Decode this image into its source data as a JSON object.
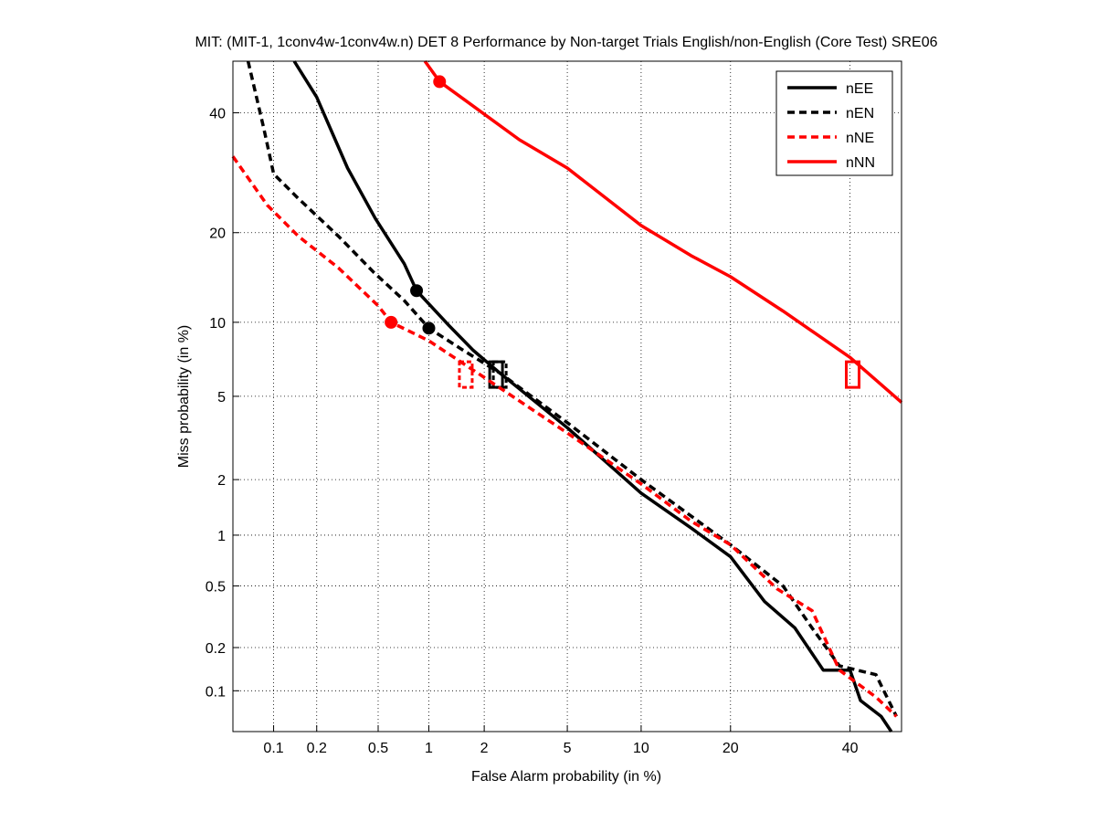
{
  "chart_data": {
    "type": "line",
    "title": "MIT: (MIT-1, 1conv4w-1conv4w.n) DET 8 Performance by Non-target Trials English/non-English (Core Test) SRE06",
    "xlabel": "False Alarm probability (in %)",
    "ylabel": "Miss probability (in %)",
    "xscale": "probit",
    "yscale": "probit",
    "xlim": [
      0.05,
      50
    ],
    "ylim": [
      0.05,
      50
    ],
    "xticks": [
      0.1,
      0.2,
      0.5,
      1,
      2,
      5,
      10,
      20,
      40
    ],
    "xtick_labels": [
      "0.1",
      "0.2",
      "0.5",
      "1",
      "2",
      "5",
      "10",
      "20",
      "40"
    ],
    "yticks": [
      0.1,
      0.2,
      0.5,
      1,
      2,
      5,
      10,
      20,
      40
    ],
    "ytick_labels": [
      "0.1",
      "0.2",
      "0.5",
      "1",
      "2",
      "5",
      "10",
      "20",
      "40"
    ],
    "grid": true,
    "legend_position": "top-right",
    "series": [
      {
        "name": "nEE",
        "color": "#000000",
        "dash": false,
        "x": [
          0.14,
          0.2,
          0.32,
          0.48,
          0.72,
          0.85,
          1.3,
          1.75,
          2.4,
          5,
          10,
          15,
          20,
          25,
          30,
          35,
          40,
          42,
          46,
          48
        ],
        "y": [
          50,
          43,
          30,
          22,
          16,
          13,
          9.7,
          7.8,
          6.3,
          3.6,
          1.7,
          1.1,
          0.75,
          0.4,
          0.27,
          0.14,
          0.14,
          0.085,
          0.065,
          0.05
        ],
        "min_dcf": [
          0.85,
          13
        ],
        "act_dcf": [
          2.3,
          6.2
        ]
      },
      {
        "name": "nEN",
        "color": "#000000",
        "dash": true,
        "x": [
          0.065,
          0.075,
          0.085,
          0.1,
          0.15,
          0.28,
          0.47,
          0.72,
          1,
          1.55,
          2.4,
          5,
          10,
          20,
          28,
          33,
          38,
          45,
          49
        ],
        "y": [
          50,
          43,
          37,
          29,
          25,
          19.5,
          15,
          12,
          9.5,
          7.8,
          6.3,
          3.8,
          2,
          0.88,
          0.5,
          0.27,
          0.15,
          0.13,
          0.065
        ],
        "min_dcf": [
          1,
          9.5
        ],
        "act_dcf": [
          2.4,
          6.2
        ]
      },
      {
        "name": "nNE",
        "color": "#ff0000",
        "dash": true,
        "x": [
          0.05,
          0.09,
          0.15,
          0.28,
          0.5,
          0.6,
          1,
          1.9,
          5,
          10,
          15,
          20,
          27,
          33,
          38,
          45,
          49
        ],
        "y": [
          32,
          24,
          19.5,
          15.5,
          11.5,
          10,
          8.5,
          6.2,
          3.4,
          1.9,
          1.2,
          0.88,
          0.48,
          0.35,
          0.14,
          0.09,
          0.065
        ],
        "min_dcf": [
          0.6,
          10
        ],
        "act_dcf": [
          1.6,
          6.2
        ]
      },
      {
        "name": "nNN",
        "color": "#ff0000",
        "dash": false,
        "x": [
          0.95,
          1.15,
          3,
          5,
          10,
          15,
          20,
          28,
          40,
          50
        ],
        "y": [
          50,
          46,
          35,
          30,
          21,
          17,
          14.5,
          11,
          7.3,
          4.7
        ],
        "min_dcf": [
          1.15,
          46
        ],
        "act_dcf": [
          40.5,
          6.2
        ]
      }
    ]
  }
}
